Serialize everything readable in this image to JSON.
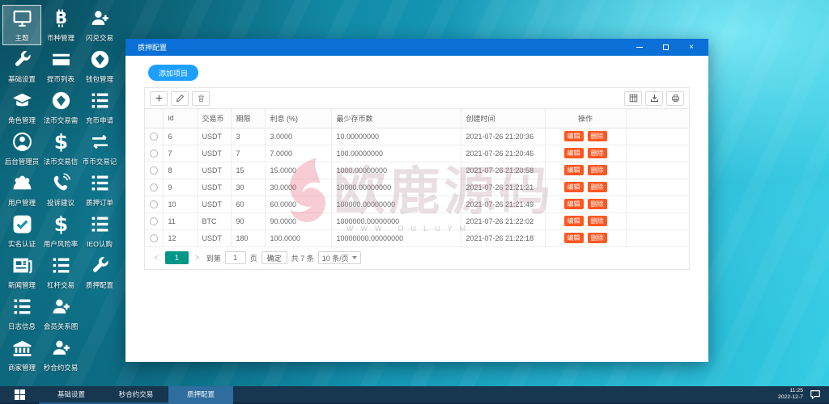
{
  "desktop": {
    "icons": [
      {
        "label": "主题",
        "icon": "monitor-icon",
        "selected": true
      },
      {
        "label": "币种管理",
        "icon": "bitcoin-icon"
      },
      {
        "label": "闪兑交易",
        "icon": "user-plus-icon"
      },
      {
        "label": "基础设置",
        "icon": "wrench-icon"
      },
      {
        "label": "提币列表",
        "icon": "card-icon"
      },
      {
        "label": "钱包管理",
        "icon": "gem-icon"
      },
      {
        "label": "角色管理",
        "icon": "graduation-cap-icon"
      },
      {
        "label": "法币交易需",
        "icon": "gem-icon"
      },
      {
        "label": "充币申请",
        "icon": "list-icon"
      },
      {
        "label": "后台管理员",
        "icon": "user-circle-icon"
      },
      {
        "label": "法币交易信",
        "icon": "dollar-icon"
      },
      {
        "label": "币币交易记",
        "icon": "swap-icon"
      },
      {
        "label": "用户管理",
        "icon": "users-icon"
      },
      {
        "label": "投诉建议",
        "icon": "phone-icon"
      },
      {
        "label": "质押订单",
        "icon": "list-icon"
      },
      {
        "label": "实名认证",
        "icon": "check-square-icon"
      },
      {
        "label": "用户风险率",
        "icon": "dollar-icon"
      },
      {
        "label": "IEO认购",
        "icon": "list-icon"
      },
      {
        "label": "新闻管理",
        "icon": "news-icon"
      },
      {
        "label": "杠杆交易",
        "icon": "list-icon"
      },
      {
        "label": "质押配置",
        "icon": "wrench-icon"
      },
      {
        "label": "日志信息",
        "icon": "list-icon"
      },
      {
        "label": "会员关系图",
        "icon": "user-plus-icon"
      },
      {
        "label": "商家管理",
        "icon": "bank-icon"
      },
      {
        "label": "秒合约交易",
        "icon": "user-plus-icon"
      }
    ]
  },
  "window": {
    "title": "质押配置",
    "controls": [
      "minimize-icon",
      "maximize-icon",
      "close-icon"
    ],
    "add_button": "添加项目",
    "toolbar": {
      "left_icons": [
        "add-icon",
        "edit-icon",
        "delete-icon"
      ],
      "right_icons": [
        "columns-icon",
        "export-icon",
        "print-icon"
      ]
    },
    "table": {
      "headers": [
        "id",
        "交易币",
        "期限",
        "利息 (%)",
        "最少存币数",
        "创建时间",
        "操作"
      ],
      "edit_label": "编辑",
      "delete_label": "删除",
      "rows": [
        {
          "id": "6",
          "coin": "USDT",
          "term": "3",
          "interest": "3.0000",
          "min_deposit": "10.00000000",
          "created": "2021-07-26 21:20:36"
        },
        {
          "id": "7",
          "coin": "USDT",
          "term": "7",
          "interest": "7.0000",
          "min_deposit": "100.00000000",
          "created": "2021-07-26 21:20:46"
        },
        {
          "id": "8",
          "coin": "USDT",
          "term": "15",
          "interest": "15.0000",
          "min_deposit": "1000.00000000",
          "created": "2021-07-26 21:20:58"
        },
        {
          "id": "9",
          "coin": "USDT",
          "term": "30",
          "interest": "30.0000",
          "min_deposit": "10000.00000000",
          "created": "2021-07-26 21:21:21"
        },
        {
          "id": "10",
          "coin": "USDT",
          "term": "60",
          "interest": "60.0000",
          "min_deposit": "100000.00000000",
          "created": "2021-07-26 21:21:49"
        },
        {
          "id": "11",
          "coin": "BTC",
          "term": "90",
          "interest": "90.0000",
          "min_deposit": "1000000.00000000",
          "created": "2021-07-26 21:22:02"
        },
        {
          "id": "12",
          "coin": "USDT",
          "term": "180",
          "interest": "100.0000",
          "min_deposit": "10000000.00000000",
          "created": "2021-07-26 21:22:18"
        }
      ]
    },
    "pagination": {
      "prev": "<",
      "current_page": "1",
      "next": ">",
      "goto_label": "到第",
      "goto_value": "1",
      "page_unit": "页",
      "confirm": "确定",
      "total": "共 7 条",
      "per_page": "10 条/页"
    }
  },
  "watermark": {
    "text": "欧鹿源码",
    "subtext": "WWW.OULUYM"
  },
  "taskbar": {
    "items": [
      {
        "label": "基础设置",
        "active": false
      },
      {
        "label": "秒合约交易",
        "active": false
      },
      {
        "label": "质押配置",
        "active": true
      }
    ],
    "time": "11:25",
    "date": "2022-12-7"
  },
  "colors": {
    "titlebar": "#0a6fd6",
    "accent_button": "#1E9FFF",
    "danger_button": "#FF5722",
    "pager_active": "#009688",
    "taskbar": "#17364f",
    "taskbar_active": "#2e6d9d"
  }
}
